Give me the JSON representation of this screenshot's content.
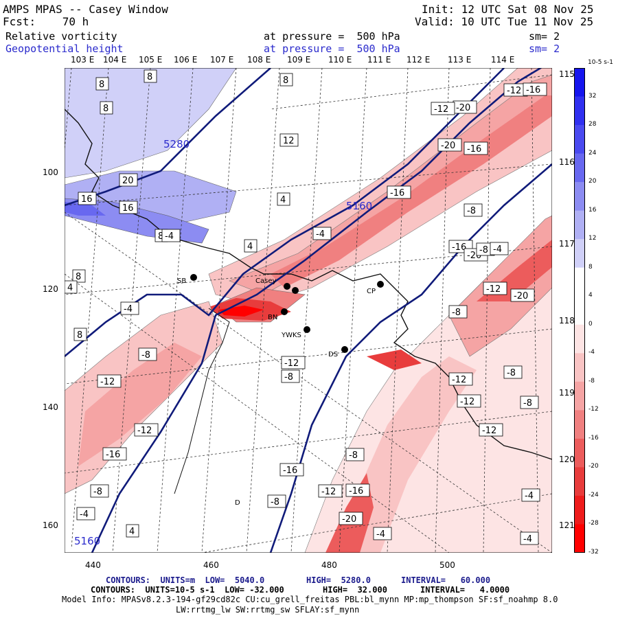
{
  "header": {
    "model": "AMPS MPAS -- Casey Window",
    "fcst": "Fcst:    70 h",
    "init": "Init: 12 UTC Sat 08 Nov 25",
    "valid": "Valid: 10 UTC Tue 11 Nov 25",
    "field1": "Relative vorticity",
    "field1_level": "at pressure =  500 hPa",
    "field1_sm": "sm= 2",
    "field2": "Geopotential height",
    "field2_level": "at pressure =  500 hPa",
    "field2_sm": "sm= 2"
  },
  "lon_top": [
    "103 E",
    "104 E",
    "105 E",
    "106 E",
    "107 E",
    "108 E",
    "109 E",
    "110 E",
    "111 E",
    "112 E",
    "113 E",
    "114 E"
  ],
  "lon_right": [
    "115 E",
    "116 E",
    "117 E",
    "118 E",
    "119 E",
    "120 E",
    "121 E"
  ],
  "x_ticks": [
    "440",
    "460",
    "480",
    "500"
  ],
  "y_ticks": [
    "100",
    "120",
    "140",
    "160"
  ],
  "stations": [
    "SB",
    "Casey",
    "CP",
    "DS",
    "YWKS",
    "BN",
    "D"
  ],
  "height_labels": [
    "5280",
    "5160",
    "5160"
  ],
  "vort_labels": [
    "8",
    "8",
    "8",
    "8",
    "12",
    "20",
    "16",
    "16",
    "4",
    "8",
    "4",
    "-4",
    "8",
    "4",
    "-4",
    "8",
    "-8",
    "-12",
    "-12",
    "-16",
    "-8",
    "-4",
    "4",
    "-8",
    "-16",
    "-20",
    "-12",
    "-12",
    "-16",
    "-20",
    "-16",
    "-12",
    "-8",
    "-4",
    "-16",
    "-20",
    "-8",
    "-4",
    "-12",
    "-8",
    "-20",
    "-12",
    "-8",
    "-12",
    "-8",
    "-12",
    "-16",
    "-8",
    "-8",
    "-12",
    "-16",
    "-20",
    "-4",
    "-4",
    "-4"
  ],
  "colorbar": {
    "unit": "10-5 s-1",
    "levels": [
      "32",
      "28",
      "24",
      "20",
      "16",
      "12",
      "8",
      "4",
      "0",
      "-4",
      "-8",
      "-12",
      "-16",
      "-20",
      "-24",
      "-28",
      "-32"
    ],
    "colors": [
      "#1515ee",
      "#3030f0",
      "#4a4af0",
      "#6868f0",
      "#8c8cf2",
      "#b0b0f4",
      "#d0d0f8",
      "#ffffff",
      "#ffffff",
      "#fde4e4",
      "#f9c4c4",
      "#f5a4a4",
      "#f08080",
      "#ec5c5c",
      "#e83c3c",
      "#ee1c1c",
      "#ff0000"
    ]
  },
  "footer": {
    "line1_a": "CONTOURS:  UNITS=m  LOW=  5040.0",
    "line1_b": "HIGH=  5280.0",
    "line1_c": "INTERVAL=   60.000",
    "line2_a": "CONTOURS:  UNITS=10-5 s-1  LOW= -32.000",
    "line2_b": "HIGH=  32.000",
    "line2_c": "INTERVAL=   4.0000",
    "line3": "Model Info: MPASv8.2.3-194-gf29cd82c CU:cu_grell_freitas PBL:bl_mynn MP:mp_thompson SF:sf_noahmp 8.0",
    "line4": "LW:rrtmg_lw SW:rrtmg_sw SFLAY:sf_mynn"
  }
}
